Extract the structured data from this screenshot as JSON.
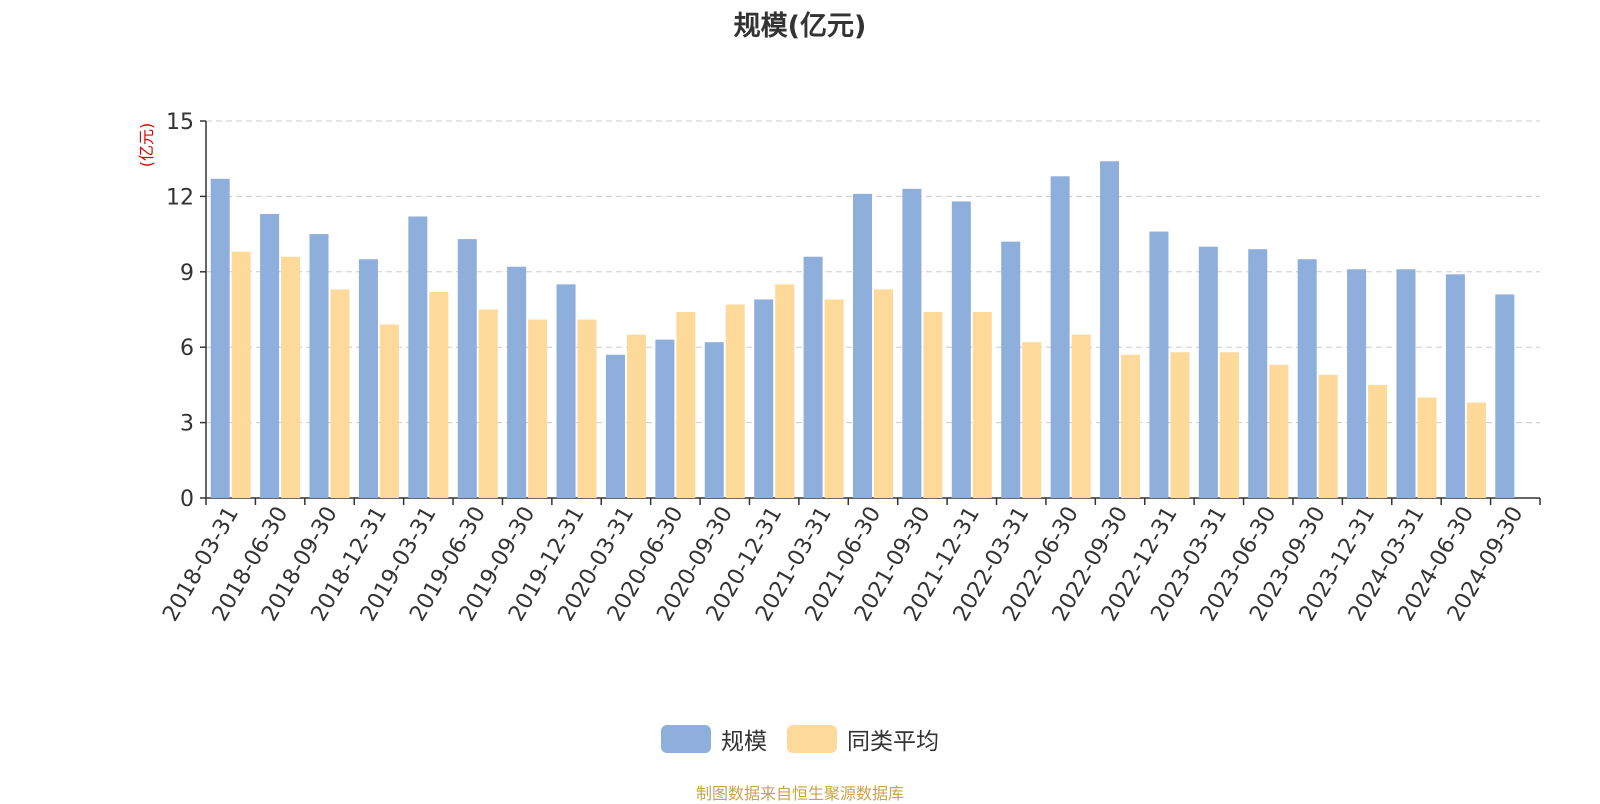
{
  "chart_data": {
    "type": "bar",
    "title": "规模(亿元)",
    "ylabel": "(亿元)",
    "xlabel": "",
    "ylim": [
      0,
      15
    ],
    "yticks": [
      0,
      3,
      6,
      9,
      12,
      15
    ],
    "grid": true,
    "legend_position": "bottom-center",
    "categories": [
      "2018-03-31",
      "2018-06-30",
      "2018-09-30",
      "2018-12-31",
      "2019-03-31",
      "2019-06-30",
      "2019-09-30",
      "2019-12-31",
      "2020-03-31",
      "2020-06-30",
      "2020-09-30",
      "2020-12-31",
      "2021-03-31",
      "2021-06-30",
      "2021-09-30",
      "2021-12-31",
      "2022-03-31",
      "2022-06-30",
      "2022-09-30",
      "2022-12-31",
      "2023-03-31",
      "2023-06-30",
      "2023-09-30",
      "2023-12-31",
      "2024-03-31",
      "2024-06-30",
      "2024-09-30"
    ],
    "series": [
      {
        "name": "规模",
        "color": "#8eaedb",
        "values": [
          12.7,
          11.3,
          10.5,
          9.5,
          11.2,
          10.3,
          9.2,
          8.5,
          5.7,
          6.3,
          6.2,
          7.9,
          9.6,
          12.1,
          12.3,
          11.8,
          10.2,
          12.8,
          13.4,
          10.6,
          10.0,
          9.9,
          9.5,
          9.1,
          9.1,
          8.9,
          8.1
        ]
      },
      {
        "name": "同类平均",
        "color": "#fdd99a",
        "values": [
          9.8,
          9.6,
          8.3,
          6.9,
          8.2,
          7.5,
          7.1,
          7.1,
          6.5,
          7.4,
          7.7,
          8.5,
          7.9,
          8.3,
          7.4,
          7.4,
          6.2,
          6.5,
          5.7,
          5.8,
          5.8,
          5.3,
          4.9,
          4.5,
          4.0,
          3.8,
          null
        ]
      }
    ]
  },
  "footer": {
    "source": "制图数据来自恒生聚源数据库"
  }
}
